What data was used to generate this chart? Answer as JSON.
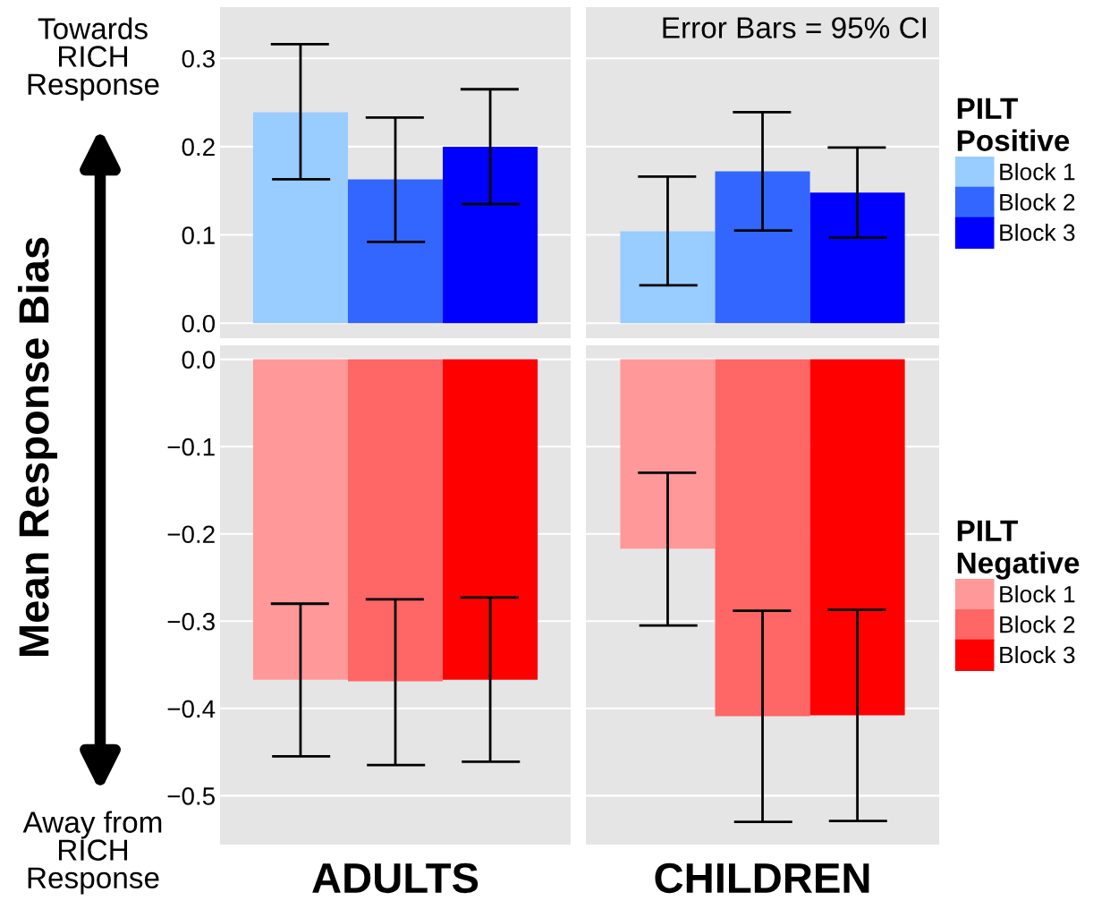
{
  "chart_data": [
    {
      "type": "bar",
      "ylabel": "Mean Response Bias",
      "categories": [
        null,
        null
      ],
      "ylim": [
        -0.017,
        0.358
      ],
      "yticks": [
        {
          "value": 0,
          "label": "0.0"
        },
        0.1,
        0.2,
        0.3
      ],
      "grid": "y",
      "legend": "right",
      "legend_title": "PILT\nPositive",
      "annotations": [
        "Towards\nRICH\nResponse",
        "Error Bars = 95% CI"
      ],
      "series": [
        {
          "name": "Block 1",
          "color": "#99ccff",
          "values": [
            0.239,
            0.104
          ],
          "errors": [
            [
              0.163,
              0.316
            ],
            [
              0.043,
              0.166
            ]
          ]
        },
        {
          "name": "Block 2",
          "color": "#3366ff",
          "values": [
            0.163,
            0.172
          ],
          "errors": [
            [
              0.092,
              0.233
            ],
            [
              0.105,
              0.239
            ]
          ]
        },
        {
          "name": "Block 3",
          "color": "#0000ff",
          "values": [
            0.2,
            0.148
          ],
          "errors": [
            [
              0.135,
              0.265
            ],
            [
              0.097,
              0.199
            ]
          ]
        }
      ]
    },
    {
      "type": "bar",
      "categories": [
        "ADULTS",
        "CHILDREN"
      ],
      "ylim": [
        -0.556,
        0.016
      ],
      "yticks": [
        {
          "value": 0,
          "label": "0.0"
        },
        -0.1,
        -0.2,
        -0.3,
        -0.4,
        -0.5
      ],
      "grid": "y",
      "legend": "right",
      "legend_title": "PILT\nNegative",
      "annotations": [
        "Away from\nRICH\nResponse"
      ],
      "series": [
        {
          "name": "Block 1",
          "color": "#ff9999",
          "values": [
            -0.367,
            -0.217
          ],
          "errors": [
            [
              -0.455,
              -0.28
            ],
            [
              -0.305,
              -0.13
            ]
          ]
        },
        {
          "name": "Block 2",
          "color": "#ff6666",
          "values": [
            -0.369,
            -0.409
          ],
          "errors": [
            [
              -0.465,
              -0.275
            ],
            [
              -0.53,
              -0.288
            ]
          ]
        },
        {
          "name": "Block 3",
          "color": "#ff0000",
          "values": [
            -0.367,
            -0.408
          ],
          "errors": [
            [
              -0.461,
              -0.273
            ],
            [
              -0.529,
              -0.287
            ]
          ]
        }
      ]
    }
  ]
}
